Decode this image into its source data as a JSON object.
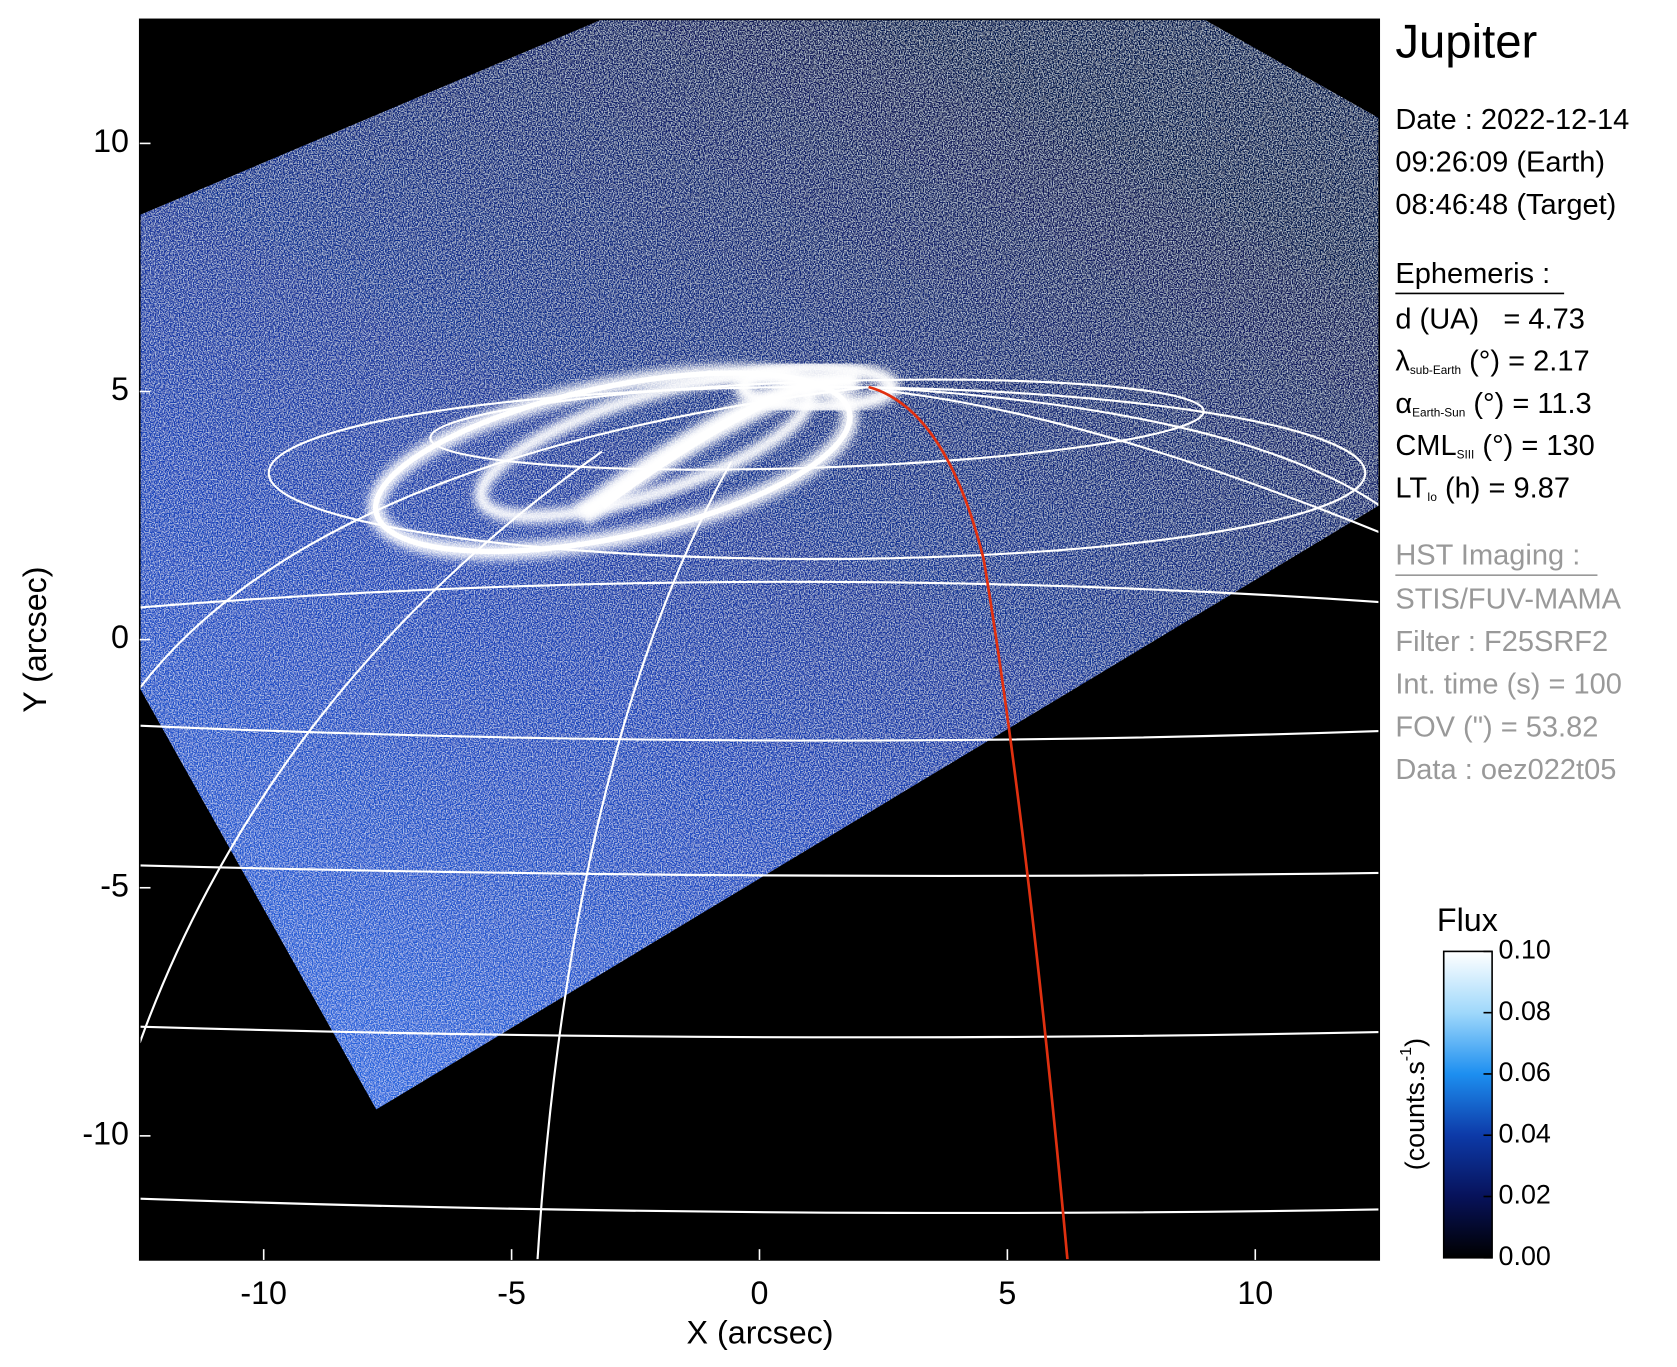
{
  "chart_data": {
    "type": "image",
    "title": "Jupiter",
    "xlabel": "X (arcsec)",
    "ylabel": "Y (arcsec)",
    "xlim": [
      -12.5,
      12.5
    ],
    "ylim": [
      -12.5,
      12.5
    ],
    "xticks": [
      -10,
      -5,
      0,
      5,
      10
    ],
    "yticks": [
      -10,
      -5,
      0,
      5,
      10
    ],
    "colorbar": {
      "title": "Flux",
      "label": "(counts.s",
      "label_sup": "-1",
      "label_end": ")",
      "lim": [
        0,
        0.1
      ],
      "ticks": [
        {
          "value": 0,
          "label": "0.00"
        },
        {
          "value": 0.02,
          "label": "0.02"
        },
        {
          "value": 0.04,
          "label": "0.04"
        },
        {
          "value": 0.06,
          "label": "0.06"
        },
        {
          "value": 0.08,
          "label": "0.08"
        },
        {
          "value": 0.1,
          "label": "0.10"
        }
      ],
      "colors": [
        "#000000",
        "#07125a",
        "#0d3aa8",
        "#1d8ff0",
        "#9fd8fb",
        "#ffffff"
      ]
    },
    "info": {
      "date": [
        "Date : 2022-12-14",
        "09:26:09 (Earth)",
        "08:46:48 (Target)"
      ],
      "ephemeris_title": "Ephemeris :",
      "ephemeris": [
        {
          "symbol": "d (UA)",
          "rest": "   = 4.73"
        },
        {
          "symbol": "λ",
          "sub": "sub-Earth",
          "rest": " (°) = 2.17"
        },
        {
          "symbol": "α",
          "sub": "Earth-Sun",
          "rest": " (°) = 11.3"
        },
        {
          "symbol": "CML",
          "sub": "SIII",
          "rest": " (°) = 130"
        },
        {
          "symbol": "LT",
          "sub": "Io",
          "rest": " (h) = 9.87"
        }
      ],
      "imaging_title": "HST Imaging :",
      "imaging": [
        "STIS/FUV-MAMA",
        "Filter : F25SRF2",
        "Int. time (s) = 100",
        "FOV (\") = 53.82",
        "Data : oez022t05"
      ]
    }
  }
}
